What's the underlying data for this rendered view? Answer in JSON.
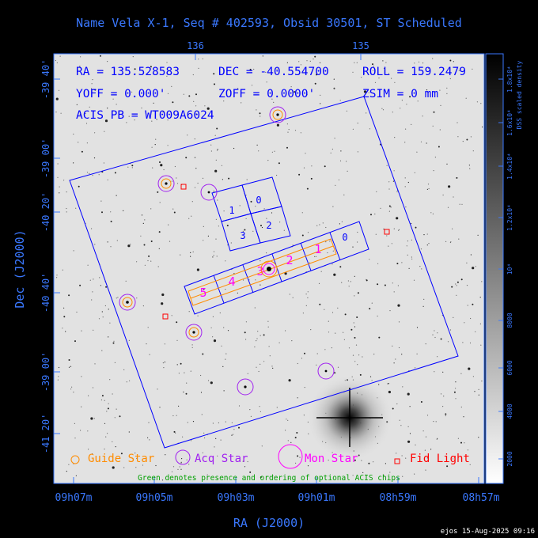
{
  "title": "Name Vela X-1, Seq # 402593, Obsid 30501, ST Scheduled",
  "info": {
    "ra": "RA = 135.528583",
    "dec": "DEC = -40.554700",
    "roll": "ROLL = 159.2479",
    "yoff": "YOFF =   0.000'",
    "zoff": "ZOFF =   0.0000'",
    "zsim": "ZSIM = 0 mm",
    "acis_pb": "ACIS PB = WT009A6024"
  },
  "axes": {
    "xlabel": "RA (J2000)",
    "ylabel": "Dec (J2000)",
    "x_ticks": [
      "09h07m",
      "09h05m",
      "09h03m",
      "09h01m",
      "08h59m",
      "08h57m"
    ],
    "top_ticks": [
      "136",
      "135"
    ],
    "y_ticks": [
      "-39 40'",
      "-39 00'",
      "-40 20'",
      "-40 40'",
      "-40 40'",
      "-39 00'",
      "-41 20'"
    ]
  },
  "colorbar": {
    "label": "DSS scaled density",
    "ticks": [
      "1.8x10⁴",
      "1.6x10⁴",
      "1.4x10⁴",
      "1.2x10⁴",
      "10⁴",
      "8000",
      "6000",
      "4000",
      "2000"
    ]
  },
  "chips": {
    "imaging": [
      "1",
      "0",
      "3",
      "2"
    ],
    "spectroscopy": [
      "5",
      "4",
      "3",
      "2",
      "1",
      "0"
    ]
  },
  "legend": {
    "guide_star": "Guide Star",
    "acq_star": "Acq Star",
    "mon_star": "Mon Star",
    "fid_light": "Fid Light",
    "note": "Green denotes presence and ordering of optional ACIS chips"
  },
  "footer": "ejos 15-Aug-2025 09:16",
  "colors": {
    "axis_blue": "#3a78ff",
    "guide": "#ff8c00",
    "acq": "#a020f0",
    "mon": "#ff00ff",
    "fid": "#ff0000",
    "optional": "#00a000",
    "spec": "#ff00ff"
  }
}
